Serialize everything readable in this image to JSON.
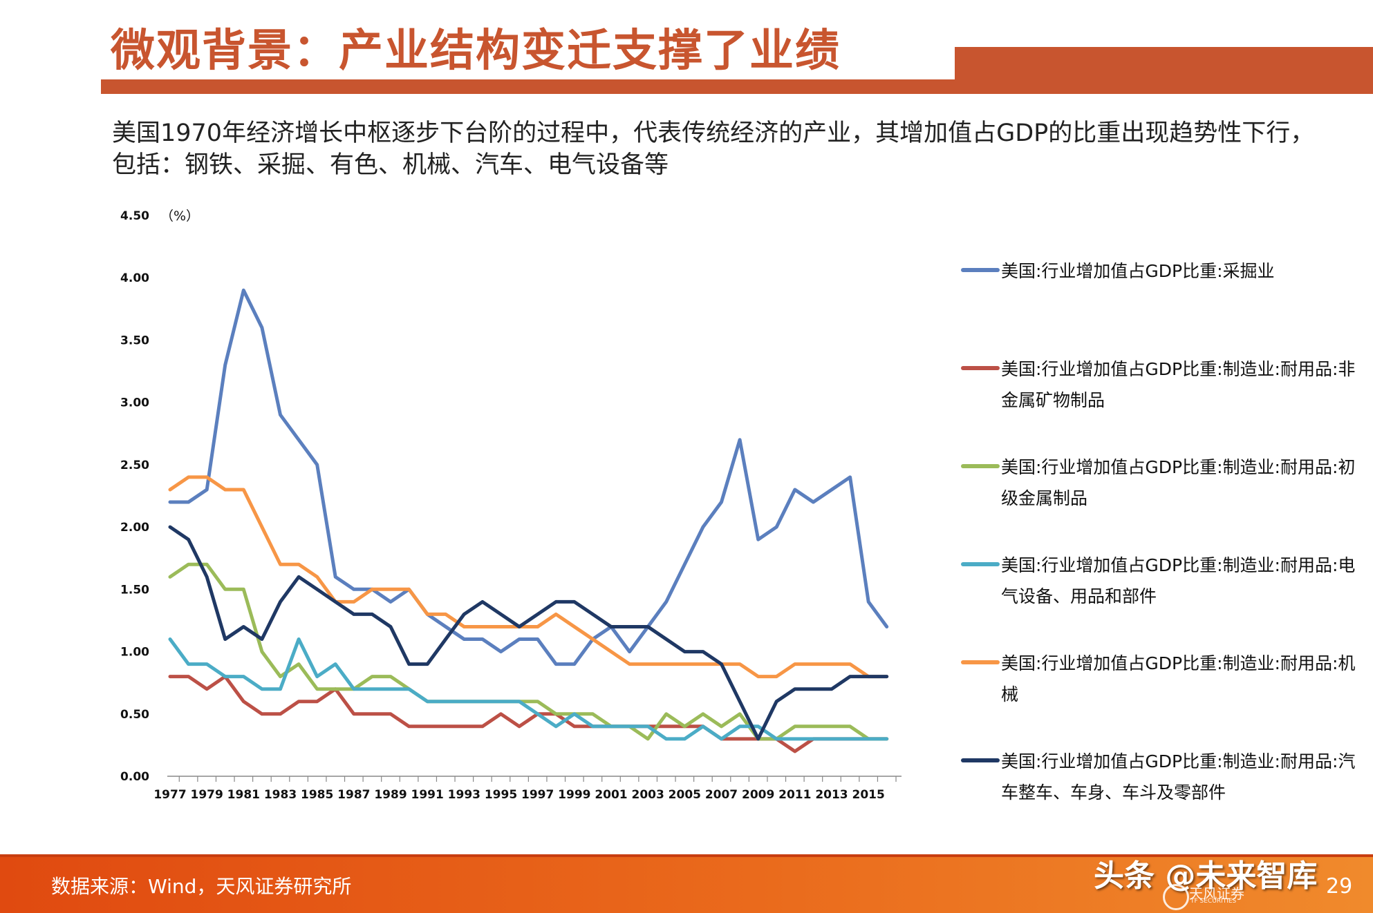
{
  "header": {
    "title": "微观背景：产业结构变迁支撑了业绩",
    "description": "美国1970年经济增长中枢逐步下台阶的过程中，代表传统经济的产业，其增加值占GDP的比重出现趋势性下行，包括：钢铁、采掘、有色、机械、汽车、电气设备等"
  },
  "chart_data": {
    "type": "line",
    "unit_label": "（%）",
    "ylim": [
      0,
      4.5
    ],
    "y_ticks": [
      "0.00",
      "0.50",
      "1.00",
      "1.50",
      "2.00",
      "2.50",
      "3.00",
      "3.50",
      "4.00",
      "4.50"
    ],
    "x_tick_labels": [
      "1977",
      "1979",
      "1981",
      "1983",
      "1985",
      "1987",
      "1989",
      "1991",
      "1993",
      "1995",
      "1997",
      "1999",
      "2001",
      "2003",
      "2005",
      "2007",
      "2009",
      "2011",
      "2013",
      "2015"
    ],
    "x": [
      1977,
      1978,
      1979,
      1980,
      1981,
      1982,
      1983,
      1984,
      1985,
      1986,
      1987,
      1988,
      1989,
      1990,
      1991,
      1992,
      1993,
      1994,
      1995,
      1996,
      1997,
      1998,
      1999,
      2000,
      2001,
      2002,
      2003,
      2004,
      2005,
      2006,
      2007,
      2008,
      2009,
      2010,
      2011,
      2012,
      2013,
      2014,
      2015,
      2016
    ],
    "series": [
      {
        "name": "美国:行业增加值占GDP比重:采掘业",
        "color": "#5B7FBE",
        "values": [
          2.2,
          2.2,
          2.3,
          3.3,
          3.9,
          3.6,
          2.9,
          2.7,
          2.5,
          1.6,
          1.5,
          1.5,
          1.4,
          1.5,
          1.3,
          1.2,
          1.1,
          1.1,
          1.0,
          1.1,
          1.1,
          0.9,
          0.9,
          1.1,
          1.2,
          1.0,
          1.2,
          1.4,
          1.7,
          2.0,
          2.2,
          2.7,
          1.9,
          2.0,
          2.3,
          2.2,
          2.3,
          2.4,
          1.4,
          1.2
        ]
      },
      {
        "name": "美国:行业增加值占GDP比重:制造业:耐用品:非金属矿物制品",
        "color": "#BC5046",
        "values": [
          0.8,
          0.8,
          0.7,
          0.8,
          0.6,
          0.5,
          0.5,
          0.6,
          0.6,
          0.7,
          0.5,
          0.5,
          0.5,
          0.4,
          0.4,
          0.4,
          0.4,
          0.4,
          0.5,
          0.4,
          0.5,
          0.5,
          0.4,
          0.4,
          0.4,
          0.4,
          0.4,
          0.4,
          0.4,
          0.4,
          0.3,
          0.3,
          0.3,
          0.3,
          0.2,
          0.3,
          0.3,
          0.3,
          0.3,
          0.3
        ]
      },
      {
        "name": "美国:行业增加值占GDP比重:制造业:耐用品:初级金属制品",
        "color": "#9BBB59",
        "values": [
          1.6,
          1.7,
          1.7,
          1.5,
          1.5,
          1.0,
          0.8,
          0.9,
          0.7,
          0.7,
          0.7,
          0.8,
          0.8,
          0.7,
          0.6,
          0.6,
          0.6,
          0.6,
          0.6,
          0.6,
          0.6,
          0.5,
          0.5,
          0.5,
          0.4,
          0.4,
          0.3,
          0.5,
          0.4,
          0.5,
          0.4,
          0.5,
          0.3,
          0.3,
          0.4,
          0.4,
          0.4,
          0.4,
          0.3,
          0.3
        ]
      },
      {
        "name": "美国:行业增加值占GDP比重:制造业:耐用品:电气设备、用品和部件",
        "color": "#4BACC6",
        "values": [
          1.1,
          0.9,
          0.9,
          0.8,
          0.8,
          0.7,
          0.7,
          1.1,
          0.8,
          0.9,
          0.7,
          0.7,
          0.7,
          0.7,
          0.6,
          0.6,
          0.6,
          0.6,
          0.6,
          0.6,
          0.5,
          0.4,
          0.5,
          0.4,
          0.4,
          0.4,
          0.4,
          0.3,
          0.3,
          0.4,
          0.3,
          0.4,
          0.4,
          0.3,
          0.3,
          0.3,
          0.3,
          0.3,
          0.3,
          0.3
        ]
      },
      {
        "name": "美国:行业增加值占GDP比重:制造业:耐用品:机械",
        "color": "#F79646",
        "values": [
          2.3,
          2.4,
          2.4,
          2.3,
          2.3,
          2.0,
          1.7,
          1.7,
          1.6,
          1.4,
          1.4,
          1.5,
          1.5,
          1.5,
          1.3,
          1.3,
          1.2,
          1.2,
          1.2,
          1.2,
          1.2,
          1.3,
          1.2,
          1.1,
          1.0,
          0.9,
          0.9,
          0.9,
          0.9,
          0.9,
          0.9,
          0.9,
          0.8,
          0.8,
          0.9,
          0.9,
          0.9,
          0.9,
          0.8,
          0.8
        ]
      },
      {
        "name": "美国:行业增加值占GDP比重:制造业:耐用品:汽车整车、车身、车斗及零部件",
        "color": "#1F3864",
        "values": [
          2.0,
          1.9,
          1.6,
          1.1,
          1.2,
          1.1,
          1.4,
          1.6,
          1.5,
          1.4,
          1.3,
          1.3,
          1.2,
          0.9,
          0.9,
          1.1,
          1.3,
          1.4,
          1.3,
          1.2,
          1.3,
          1.4,
          1.4,
          1.3,
          1.2,
          1.2,
          1.2,
          1.1,
          1.0,
          1.0,
          0.9,
          0.6,
          0.3,
          0.6,
          0.7,
          0.7,
          0.7,
          0.8,
          0.8,
          0.8
        ]
      }
    ]
  },
  "legend": {
    "items": [
      {
        "label": "美国:行业增加值占GDP比重:采掘业",
        "color": "#5B7FBE"
      },
      {
        "label": "美国:行业增加值占GDP比重:制造业:耐用品:非金属矿物制品",
        "color": "#BC5046"
      },
      {
        "label": "美国:行业增加值占GDP比重:制造业:耐用品:初级金属制品",
        "color": "#9BBB59"
      },
      {
        "label": "美国:行业增加值占GDP比重:制造业:耐用品:电气设备、用品和部件",
        "color": "#4BACC6"
      },
      {
        "label": "美国:行业增加值占GDP比重:制造业:耐用品:机械",
        "color": "#F79646"
      },
      {
        "label": "美国:行业增加值占GDP比重:制造业:耐用品:汽车整车、车身、车斗及零部件",
        "color": "#1F3864"
      }
    ]
  },
  "footer": {
    "source": "数据来源：Wind，天风证券研究所",
    "watermark": "头条 @未来智库",
    "logo_text": "天风证券",
    "logo_sub": "TF SECURITIES",
    "page_number": "29"
  }
}
